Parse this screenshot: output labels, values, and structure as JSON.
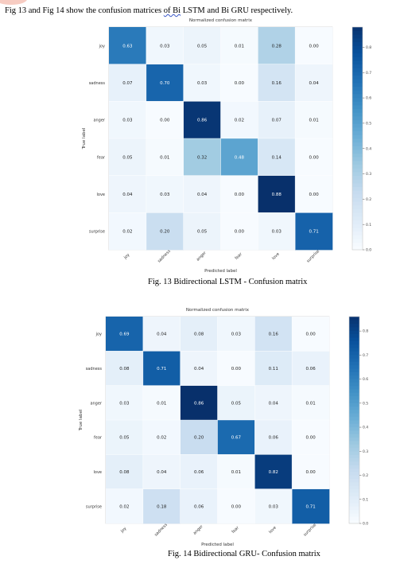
{
  "intro_text_before": "Fig 13 and Fig 14 show the confusion matrices ",
  "intro_text_wavy": "of Bi",
  "intro_text_after": " LSTM and Bi GRU respectively.",
  "captions": {
    "fig13": "Fig. 13 Bidirectional LSTM - Confusion matrix",
    "fig14": "Fig. 14 Bidirectional GRU- Confusion matrix"
  },
  "colors": {
    "cmap_light": "#f7fbff",
    "cmap_dark": "#08306b"
  },
  "chart_data": [
    {
      "type": "heatmap",
      "title": "Normalized confusion matrix",
      "xlabel": "Predicted label",
      "ylabel": "True label",
      "categories": [
        "joy",
        "sadness",
        "anger",
        "fear",
        "love",
        "surprise"
      ],
      "values": [
        [
          0.63,
          0.03,
          0.05,
          0.01,
          0.28,
          0.0
        ],
        [
          0.07,
          0.7,
          0.03,
          0.0,
          0.16,
          0.04
        ],
        [
          0.03,
          0.0,
          0.86,
          0.02,
          0.07,
          0.01
        ],
        [
          0.05,
          0.01,
          0.32,
          0.48,
          0.14,
          0.0
        ],
        [
          0.04,
          0.03,
          0.04,
          0.0,
          0.88,
          0.0
        ],
        [
          0.02,
          0.2,
          0.05,
          0.0,
          0.03,
          0.71
        ]
      ],
      "colorbar_ticks": [
        "0.0",
        "0.1",
        "0.2",
        "0.3",
        "0.4",
        "0.5",
        "0.6",
        "0.7",
        "0.8"
      ],
      "colorbar_range": [
        0,
        0.88
      ]
    },
    {
      "type": "heatmap",
      "title": "Normalized confusion matrix",
      "xlabel": "Predicted label",
      "ylabel": "True label",
      "categories": [
        "joy",
        "sadness",
        "anger",
        "fear",
        "love",
        "surprise"
      ],
      "values": [
        [
          0.69,
          0.04,
          0.08,
          0.03,
          0.16,
          0.0
        ],
        [
          0.08,
          0.71,
          0.04,
          0.0,
          0.11,
          0.06
        ],
        [
          0.03,
          0.01,
          0.86,
          0.05,
          0.04,
          0.01
        ],
        [
          0.05,
          0.02,
          0.2,
          0.67,
          0.06,
          0.0
        ],
        [
          0.08,
          0.04,
          0.06,
          0.01,
          0.82,
          0.0
        ],
        [
          0.02,
          0.18,
          0.06,
          0.0,
          0.03,
          0.71
        ]
      ],
      "colorbar_ticks": [
        "0.0",
        "0.1",
        "0.2",
        "0.3",
        "0.4",
        "0.5",
        "0.6",
        "0.7",
        "0.8"
      ],
      "colorbar_range": [
        0,
        0.86
      ]
    }
  ]
}
